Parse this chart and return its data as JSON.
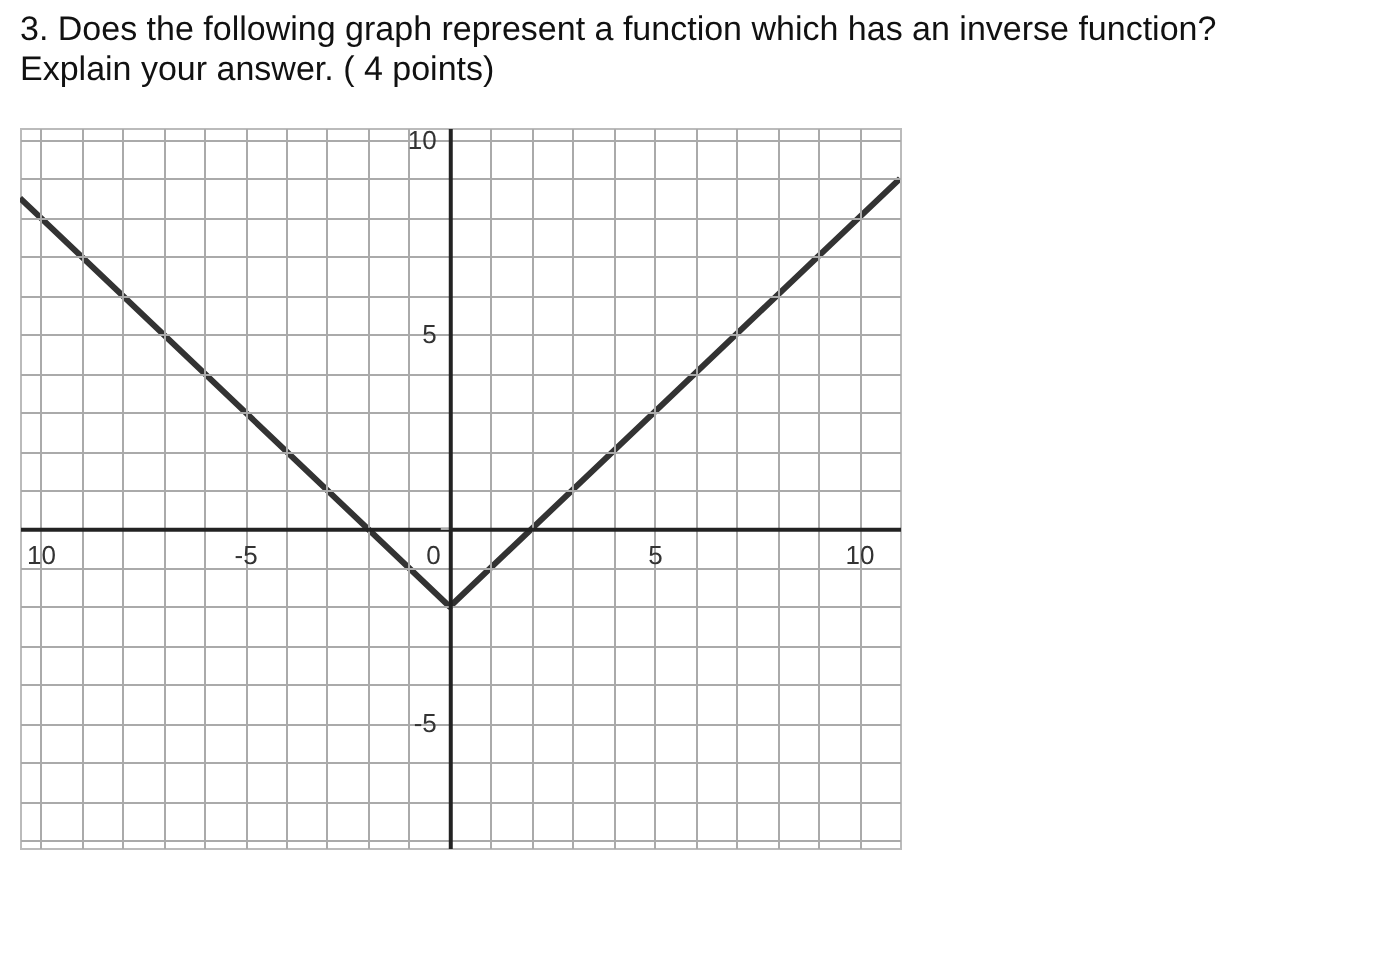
{
  "chart_data": {
    "type": "line",
    "title": "3. Does the following graph represent a function which has an inverse function?",
    "subtitle": "Explain your answer. ( 4 points)",
    "x": [
      -10.5,
      0,
      11
    ],
    "series": [
      {
        "color": "#333333",
        "values": [
          8.5,
          -2,
          9
        ]
      }
    ],
    "xlim": [
      -10.5,
      11
    ],
    "ylim": [
      -8.2,
      10.3
    ],
    "xticks": [
      {
        "value": -10,
        "label": "10"
      },
      {
        "value": -9,
        "label": null
      },
      {
        "value": -8,
        "label": null
      },
      {
        "value": -7,
        "label": null
      },
      {
        "value": -6,
        "label": null
      },
      -5,
      {
        "value": -4,
        "label": null
      },
      {
        "value": -3,
        "label": null
      },
      {
        "value": -2,
        "label": null
      },
      {
        "value": -1,
        "label": null
      },
      0,
      {
        "value": 1,
        "label": null
      },
      {
        "value": 2,
        "label": null
      },
      {
        "value": 3,
        "label": null
      },
      {
        "value": 4,
        "label": null
      },
      5,
      {
        "value": 6,
        "label": null
      },
      {
        "value": 7,
        "label": null
      },
      {
        "value": 8,
        "label": null
      },
      {
        "value": 9,
        "label": null
      },
      10
    ],
    "yticks": [
      {
        "value": -8,
        "label": null
      },
      {
        "value": -7,
        "label": null
      },
      {
        "value": -6,
        "label": null
      },
      -5,
      {
        "value": -4,
        "label": null
      },
      {
        "value": -3,
        "label": null
      },
      {
        "value": -2,
        "label": null
      },
      {
        "value": -1,
        "label": null
      },
      {
        "value": 0,
        "label": null
      },
      {
        "value": 1,
        "label": null
      },
      {
        "value": 2,
        "label": null
      },
      {
        "value": 3,
        "label": null
      },
      {
        "value": 4,
        "label": null
      },
      5,
      {
        "value": 6,
        "label": null
      },
      {
        "value": 7,
        "label": null
      },
      {
        "value": 8,
        "label": null
      },
      {
        "value": 9,
        "label": null
      },
      10
    ],
    "grid": true
  }
}
